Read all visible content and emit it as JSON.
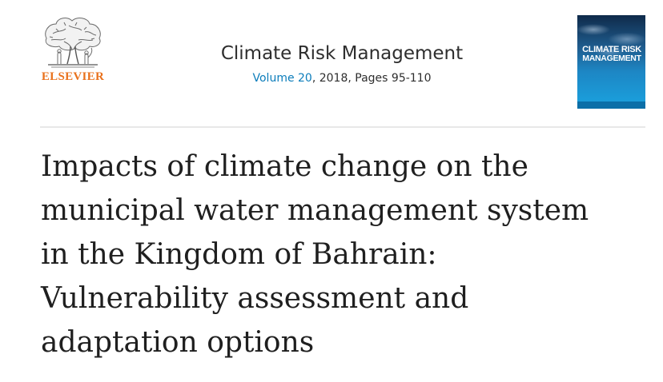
{
  "publisher": {
    "name": "ELSEVIER",
    "logo_icon": "elsevier-tree-icon",
    "brand_color": "#e9711c"
  },
  "journal": {
    "title": "Climate Risk Management",
    "volume_label": "Volume 20",
    "meta_rest": ", 2018, Pages 95-110",
    "link_color": "#0c7dbb"
  },
  "cover": {
    "title_line1": "CLIMATE RISK",
    "title_line2": "MANAGEMENT"
  },
  "article": {
    "title_lines": [
      "Impacts of climate change on the",
      "municipal water management system",
      "in the Kingdom of Bahrain:",
      "Vulnerability assessment and",
      "adaptation options"
    ]
  }
}
